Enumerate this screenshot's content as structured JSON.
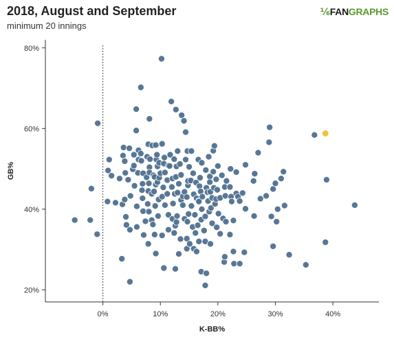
{
  "header": {
    "title": "2018, August and September",
    "subtitle": "minimum 20 innings",
    "logo_mark": "⅙",
    "logo_fan": "FAN",
    "logo_graphs": "GRAPHS"
  },
  "colors": {
    "point": "#4f7090",
    "point_stroke": "#ffffff",
    "highlight": "#f2c230",
    "axis": "#333333",
    "zero_line": "#444444"
  },
  "chart_data": {
    "type": "scatter",
    "title": "2018, August and September",
    "subtitle": "minimum 20 innings",
    "xlabel": "K-BB%",
    "ylabel": "GB%",
    "xlim": [
      -10,
      48
    ],
    "ylim": [
      17,
      82
    ],
    "xticks": [
      0,
      10,
      20,
      30,
      40
    ],
    "xtick_labels": [
      "0%",
      "10%",
      "20%",
      "30%",
      "40%"
    ],
    "yticks": [
      20,
      40,
      60,
      80
    ],
    "ytick_labels": [
      "20%",
      "40%",
      "60%",
      "80%"
    ],
    "zero_reference_line": true,
    "grid": false,
    "highlight": {
      "x": 38.7,
      "y": 58.8
    },
    "points": [
      [
        -4.9,
        37.3
      ],
      [
        -2.2,
        37.3
      ],
      [
        -2.0,
        45.1
      ],
      [
        -1.0,
        33.8
      ],
      [
        -0.9,
        61.3
      ],
      [
        0.8,
        41.9
      ],
      [
        0.9,
        49.6
      ],
      [
        1.1,
        52.3
      ],
      [
        1.5,
        48.3
      ],
      [
        2.2,
        41.6
      ],
      [
        2.9,
        47.6
      ],
      [
        3.3,
        27.7
      ],
      [
        3.4,
        41.2
      ],
      [
        3.5,
        53.3
      ],
      [
        3.6,
        55.3
      ],
      [
        3.8,
        51.9
      ],
      [
        3.8,
        42.4
      ],
      [
        3.9,
        49.0
      ],
      [
        4.0,
        38.1
      ],
      [
        4.1,
        36.1
      ],
      [
        4.4,
        47.3
      ],
      [
        4.6,
        55.1
      ],
      [
        4.7,
        34.9
      ],
      [
        4.7,
        22.0
      ],
      [
        4.8,
        43.3
      ],
      [
        5.2,
        49.9
      ],
      [
        5.4,
        50.8
      ],
      [
        5.4,
        53.5
      ],
      [
        5.5,
        45.8
      ],
      [
        5.8,
        59.5
      ],
      [
        5.8,
        64.8
      ],
      [
        5.9,
        40.7
      ],
      [
        5.9,
        35.6
      ],
      [
        6.1,
        49.0
      ],
      [
        6.2,
        52.3
      ],
      [
        6.2,
        54.6
      ],
      [
        6.6,
        70.2
      ],
      [
        6.6,
        53.8
      ],
      [
        6.7,
        52.0
      ],
      [
        6.8,
        44.7
      ],
      [
        6.9,
        46.3
      ],
      [
        6.9,
        42.7
      ],
      [
        7.0,
        48.9
      ],
      [
        7.0,
        39.5
      ],
      [
        7.1,
        33.6
      ],
      [
        7.4,
        37.0
      ],
      [
        7.6,
        47.9
      ],
      [
        7.7,
        53.0
      ],
      [
        7.8,
        41.3
      ],
      [
        7.9,
        56.1
      ],
      [
        7.9,
        44.5
      ],
      [
        7.9,
        31.4
      ],
      [
        8.0,
        46.4
      ],
      [
        8.0,
        39.4
      ],
      [
        8.1,
        62.4
      ],
      [
        8.1,
        50.4
      ],
      [
        8.1,
        49.1
      ],
      [
        8.2,
        52.4
      ],
      [
        8.5,
        43.8
      ],
      [
        8.5,
        37.3
      ],
      [
        8.6,
        55.8
      ],
      [
        8.7,
        36.2
      ],
      [
        8.8,
        48.4
      ],
      [
        8.9,
        44.4
      ],
      [
        9.0,
        33.7
      ],
      [
        9.0,
        48.0
      ],
      [
        9.1,
        40.8
      ],
      [
        9.2,
        55.9
      ],
      [
        9.2,
        29.0
      ],
      [
        9.2,
        46.1
      ],
      [
        9.3,
        52.3
      ],
      [
        9.4,
        53.5
      ],
      [
        9.5,
        46.7
      ],
      [
        9.5,
        50.6
      ],
      [
        9.6,
        38.3
      ],
      [
        9.7,
        42.4
      ],
      [
        9.8,
        47.8
      ],
      [
        9.8,
        51.5
      ],
      [
        10.0,
        48.9
      ],
      [
        10.2,
        77.3
      ],
      [
        10.3,
        33.5
      ],
      [
        10.3,
        43.1
      ],
      [
        10.3,
        56.2
      ],
      [
        10.5,
        45.4
      ],
      [
        10.6,
        25.4
      ],
      [
        10.6,
        51.3
      ],
      [
        10.7,
        52.8
      ],
      [
        10.8,
        49.1
      ],
      [
        10.8,
        41.0
      ],
      [
        11.2,
        43.8
      ],
      [
        11.2,
        47.2
      ],
      [
        11.4,
        50.8
      ],
      [
        11.4,
        38.6
      ],
      [
        11.4,
        34.9
      ],
      [
        11.6,
        50.7
      ],
      [
        11.7,
        53.5
      ],
      [
        11.9,
        66.7
      ],
      [
        12.0,
        45.5
      ],
      [
        12.1,
        37.6
      ],
      [
        12.1,
        47.6
      ],
      [
        12.2,
        41.4
      ],
      [
        12.4,
        52.4
      ],
      [
        12.4,
        34.1
      ],
      [
        12.5,
        43.8
      ],
      [
        12.6,
        25.2
      ],
      [
        12.6,
        35.9
      ],
      [
        12.7,
        48.0
      ],
      [
        12.7,
        64.7
      ],
      [
        12.8,
        50.6
      ],
      [
        12.8,
        36.8
      ],
      [
        12.9,
        38.3
      ],
      [
        13.0,
        44.1
      ],
      [
        13.0,
        54.4
      ],
      [
        13.2,
        46.3
      ],
      [
        13.2,
        28.9
      ],
      [
        13.4,
        51.2
      ],
      [
        13.5,
        32.6
      ],
      [
        13.6,
        42.3
      ],
      [
        13.6,
        48.5
      ],
      [
        13.7,
        63.3
      ],
      [
        13.9,
        41.0
      ],
      [
        13.9,
        43.2
      ],
      [
        14.1,
        61.9
      ],
      [
        14.2,
        37.6
      ],
      [
        14.2,
        44.3
      ],
      [
        14.4,
        52.3
      ],
      [
        14.4,
        59.1
      ],
      [
        14.6,
        32.7
      ],
      [
        14.6,
        43.0
      ],
      [
        14.6,
        30.2
      ],
      [
        14.7,
        36.9
      ],
      [
        14.7,
        54.4
      ],
      [
        14.8,
        45.9
      ],
      [
        14.8,
        47.0
      ],
      [
        14.9,
        38.8
      ],
      [
        15.0,
        50.5
      ],
      [
        15.1,
        31.4
      ],
      [
        15.3,
        47.1
      ],
      [
        15.4,
        54.4
      ],
      [
        15.4,
        40.8
      ],
      [
        15.6,
        35.6
      ],
      [
        15.7,
        48.9
      ],
      [
        15.8,
        43.7
      ],
      [
        15.8,
        30.2
      ],
      [
        16.0,
        38.6
      ],
      [
        16.1,
        34.1
      ],
      [
        16.2,
        46.6
      ],
      [
        16.3,
        42.7
      ],
      [
        16.3,
        29.5
      ],
      [
        16.5,
        36.0
      ],
      [
        16.6,
        52.3
      ],
      [
        16.7,
        42.1
      ],
      [
        16.7,
        32.0
      ],
      [
        16.7,
        41.9
      ],
      [
        16.8,
        45.7
      ],
      [
        16.9,
        47.8
      ],
      [
        17.0,
        44.4
      ],
      [
        17.1,
        24.5
      ],
      [
        17.1,
        37.4
      ],
      [
        17.2,
        40.0
      ],
      [
        17.2,
        51.5
      ],
      [
        17.3,
        43.1
      ],
      [
        17.6,
        34.7
      ],
      [
        17.8,
        38.2
      ],
      [
        17.8,
        21.1
      ],
      [
        17.8,
        32.0
      ],
      [
        17.9,
        49.7
      ],
      [
        18.0,
        24.1
      ],
      [
        18.0,
        45.3
      ],
      [
        18.2,
        44.2
      ],
      [
        18.3,
        42.0
      ],
      [
        18.4,
        53.0
      ],
      [
        18.5,
        39.4
      ],
      [
        18.6,
        48.1
      ],
      [
        18.6,
        46.7
      ],
      [
        18.7,
        44.3
      ],
      [
        18.7,
        31.4
      ],
      [
        18.8,
        40.3
      ],
      [
        19.0,
        42.8
      ],
      [
        19.0,
        36.5
      ],
      [
        19.2,
        54.5
      ],
      [
        19.2,
        49.3
      ],
      [
        19.3,
        45.3
      ],
      [
        19.4,
        55.7
      ],
      [
        19.5,
        41.3
      ],
      [
        19.7,
        42.5
      ],
      [
        19.7,
        47.4
      ],
      [
        19.8,
        35.5
      ],
      [
        19.9,
        44.8
      ],
      [
        20.0,
        50.7
      ],
      [
        20.1,
        38.9
      ],
      [
        20.4,
        42.8
      ],
      [
        20.4,
        33.9
      ],
      [
        20.7,
        48.4
      ],
      [
        20.9,
        37.7
      ],
      [
        21.1,
        26.9
      ],
      [
        21.2,
        45.5
      ],
      [
        21.2,
        28.2
      ],
      [
        21.3,
        43.3
      ],
      [
        21.4,
        36.9
      ],
      [
        21.5,
        47.0
      ],
      [
        22.1,
        33.7
      ],
      [
        22.1,
        45.5
      ],
      [
        22.2,
        50.0
      ],
      [
        22.3,
        43.1
      ],
      [
        22.4,
        41.9
      ],
      [
        22.7,
        37.2
      ],
      [
        22.7,
        29.5
      ],
      [
        22.8,
        26.5
      ],
      [
        23.2,
        43.9
      ],
      [
        23.2,
        49.2
      ],
      [
        23.5,
        43.1
      ],
      [
        23.8,
        26.5
      ],
      [
        23.8,
        42.0
      ],
      [
        24.3,
        44.0
      ],
      [
        24.6,
        29.3
      ],
      [
        24.8,
        51.0
      ],
      [
        24.8,
        40.1
      ],
      [
        26.2,
        47.0
      ],
      [
        26.3,
        38.3
      ],
      [
        26.4,
        48.8
      ],
      [
        27.0,
        54.0
      ],
      [
        27.4,
        42.6
      ],
      [
        28.4,
        43.3
      ],
      [
        28.9,
        56.6
      ],
      [
        29.0,
        60.3
      ],
      [
        29.3,
        38.2
      ],
      [
        29.6,
        30.8
      ],
      [
        29.6,
        45.0
      ],
      [
        30.0,
        46.4
      ],
      [
        30.2,
        36.9
      ],
      [
        30.4,
        40.0
      ],
      [
        31.0,
        47.6
      ],
      [
        31.4,
        49.3
      ],
      [
        31.6,
        40.9
      ],
      [
        32.4,
        28.7
      ],
      [
        35.3,
        26.2
      ],
      [
        36.8,
        58.4
      ],
      [
        38.7,
        31.8
      ],
      [
        38.9,
        47.3
      ],
      [
        43.8,
        41.0
      ]
    ]
  }
}
